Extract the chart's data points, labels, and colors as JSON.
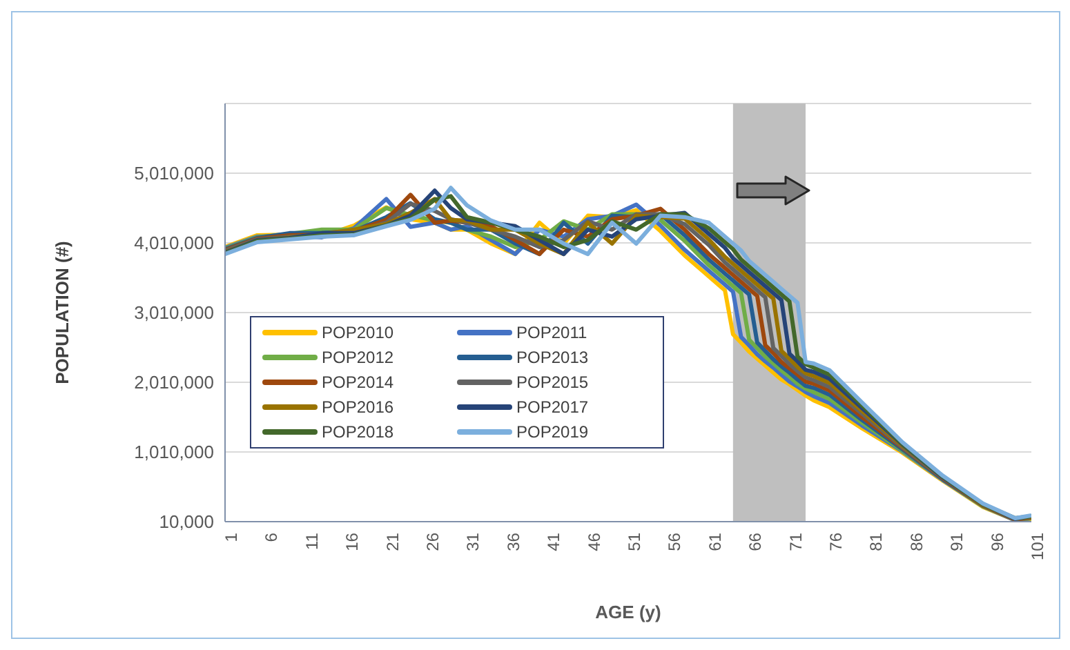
{
  "chart_data": {
    "type": "line",
    "xlabel": "AGE (y)",
    "ylabel": "POPULATION (#)",
    "x": [
      1,
      5,
      9,
      13,
      17,
      21,
      24,
      27,
      29,
      31,
      34,
      37,
      40,
      43,
      46,
      49,
      52,
      55,
      58,
      61,
      63,
      64,
      65,
      66,
      67,
      68,
      69,
      70,
      71,
      72,
      73,
      74,
      76,
      80,
      85,
      90,
      95,
      99,
      101
    ],
    "xlim": [
      1,
      101
    ],
    "xticks": [
      1,
      6,
      11,
      16,
      21,
      26,
      31,
      36,
      41,
      46,
      51,
      56,
      61,
      66,
      71,
      76,
      81,
      86,
      91,
      96,
      101
    ],
    "ylim": [
      10000,
      6010000
    ],
    "yticks": [
      {
        "value": 10000,
        "label": "10,000"
      },
      {
        "value": 1010000,
        "label": "1,010,000"
      },
      {
        "value": 2010000,
        "label": "2,010,000"
      },
      {
        "value": 3010000,
        "label": "3,010,000"
      },
      {
        "value": 4010000,
        "label": "4,010,000"
      },
      {
        "value": 5010000,
        "label": "5,010,000"
      }
    ],
    "grid": "y",
    "legend": "bottom left",
    "marker": "none",
    "line_style": "solid",
    "bands": [
      {
        "axis": "x",
        "from": 64,
        "to": 73,
        "color": "#bfbfbf"
      }
    ],
    "series": [
      {
        "name": "POP2010",
        "color": "#ffc000",
        "values": [
          3950000,
          4120000,
          4130000,
          4100000,
          4260000,
          4520000,
          4350000,
          4300000,
          4200000,
          4200000,
          4000000,
          3850000,
          4300000,
          4000000,
          4400000,
          4380000,
          4480000,
          4180000,
          3830000,
          3530000,
          3330000,
          2700000,
          2580000,
          2450000,
          2350000,
          2250000,
          2150000,
          2050000,
          1980000,
          1900000,
          1820000,
          1750000,
          1650000,
          1350000,
          1000000,
          600000,
          220000,
          30000,
          50000
        ]
      },
      {
        "name": "POP2011",
        "color": "#4472c4",
        "values": [
          3940000,
          4100000,
          4120000,
          4090000,
          4220000,
          4640000,
          4240000,
          4300000,
          4200000,
          4250000,
          4050000,
          3850000,
          4200000,
          4100000,
          4350000,
          4400000,
          4560000,
          4260000,
          3910000,
          3610000,
          3410000,
          3310000,
          2660000,
          2540000,
          2410000,
          2310000,
          2220000,
          2120000,
          2020000,
          1950000,
          1870000,
          1810000,
          1710000,
          1390000,
          1020000,
          610000,
          230000,
          30000,
          60000
        ]
      },
      {
        "name": "POP2012",
        "color": "#70ad47",
        "values": [
          3930000,
          4090000,
          4140000,
          4200000,
          4200000,
          4510000,
          4410000,
          4330000,
          4300000,
          4200000,
          4100000,
          3950000,
          4050000,
          4320000,
          4200000,
          4420000,
          4420000,
          4340000,
          4040000,
          3690000,
          3490000,
          3390000,
          3290000,
          2620000,
          2500000,
          2380000,
          2280000,
          2180000,
          2090000,
          1990000,
          1920000,
          1870000,
          1770000,
          1430000,
          1030000,
          620000,
          230000,
          40000,
          60000
        ]
      },
      {
        "name": "POP2013",
        "color": "#255e91",
        "values": [
          3920000,
          4080000,
          4150000,
          4150000,
          4180000,
          4380000,
          4580000,
          4350000,
          4300000,
          4200000,
          4200000,
          4000000,
          3850000,
          4300000,
          4000000,
          4400000,
          4380000,
          4420000,
          4120000,
          3770000,
          3570000,
          3470000,
          3370000,
          3270000,
          2580000,
          2460000,
          2340000,
          2240000,
          2150000,
          2050000,
          1960000,
          1930000,
          1830000,
          1470000,
          1050000,
          620000,
          240000,
          40000,
          70000
        ]
      },
      {
        "name": "POP2014",
        "color": "#9e480e",
        "values": [
          3910000,
          4070000,
          4120000,
          4130000,
          4180000,
          4340000,
          4700000,
          4300000,
          4330000,
          4300000,
          4250000,
          4050000,
          3850000,
          4200000,
          4100000,
          4350000,
          4400000,
          4500000,
          4200000,
          3850000,
          3650000,
          3550000,
          3450000,
          3350000,
          3250000,
          2540000,
          2430000,
          2300000,
          2210000,
          2120000,
          2020000,
          1990000,
          1890000,
          1510000,
          1070000,
          630000,
          240000,
          40000,
          70000
        ]
      },
      {
        "name": "POP2015",
        "color": "#636363",
        "values": [
          3900000,
          4060000,
          4100000,
          4120000,
          4170000,
          4300000,
          4570000,
          4470000,
          4350000,
          4300000,
          4200000,
          4100000,
          3950000,
          4050000,
          4320000,
          4200000,
          4420000,
          4420000,
          4280000,
          3980000,
          3730000,
          3630000,
          3530000,
          3430000,
          3330000,
          3230000,
          2500000,
          2390000,
          2270000,
          2170000,
          2080000,
          2040000,
          1940000,
          1560000,
          1080000,
          640000,
          250000,
          50000,
          80000
        ]
      },
      {
        "name": "POP2016",
        "color": "#997300",
        "values": [
          3880000,
          4050000,
          4090000,
          4140000,
          4200000,
          4280000,
          4440000,
          4640000,
          4340000,
          4330000,
          4200000,
          4200000,
          4000000,
          3850000,
          4300000,
          4000000,
          4400000,
          4380000,
          4360000,
          4060000,
          3810000,
          3710000,
          3610000,
          3510000,
          3410000,
          3310000,
          3210000,
          2460000,
          2350000,
          2230000,
          2140000,
          2100000,
          2000000,
          1600000,
          1100000,
          650000,
          250000,
          50000,
          80000
        ]
      },
      {
        "name": "POP2017",
        "color": "#264478",
        "values": [
          3870000,
          4050000,
          4080000,
          4150000,
          4150000,
          4260000,
          4400000,
          4760000,
          4510000,
          4350000,
          4300000,
          4250000,
          4050000,
          3850000,
          4200000,
          4100000,
          4350000,
          4400000,
          4440000,
          4140000,
          3940000,
          3790000,
          3690000,
          3590000,
          3490000,
          3390000,
          3290000,
          3190000,
          2420000,
          2310000,
          2190000,
          2160000,
          2060000,
          1640000,
          1120000,
          650000,
          260000,
          50000,
          90000
        ]
      },
      {
        "name": "POP2018",
        "color": "#43682b",
        "values": [
          3860000,
          4040000,
          4070000,
          4120000,
          4130000,
          4260000,
          4360000,
          4630000,
          4680000,
          4380000,
          4300000,
          4200000,
          4100000,
          3950000,
          4050000,
          4320000,
          4200000,
          4420000,
          4420000,
          4220000,
          4020000,
          3920000,
          3770000,
          3670000,
          3570000,
          3470000,
          3370000,
          3270000,
          3170000,
          2380000,
          2270000,
          2220000,
          2120000,
          1680000,
          1130000,
          660000,
          260000,
          60000,
          90000
        ]
      },
      {
        "name": "POP2019",
        "color": "#7cafdd",
        "values": [
          3850000,
          4020000,
          4060000,
          4100000,
          4120000,
          4250000,
          4340000,
          4500000,
          4800000,
          4550000,
          4330000,
          4200000,
          4200000,
          4000000,
          3850000,
          4300000,
          4000000,
          4400000,
          4380000,
          4300000,
          4100000,
          4000000,
          3900000,
          3750000,
          3650000,
          3550000,
          3450000,
          3350000,
          3250000,
          3150000,
          2300000,
          2280000,
          2180000,
          1720000,
          1150000,
          670000,
          270000,
          60000,
          100000
        ]
      }
    ]
  }
}
